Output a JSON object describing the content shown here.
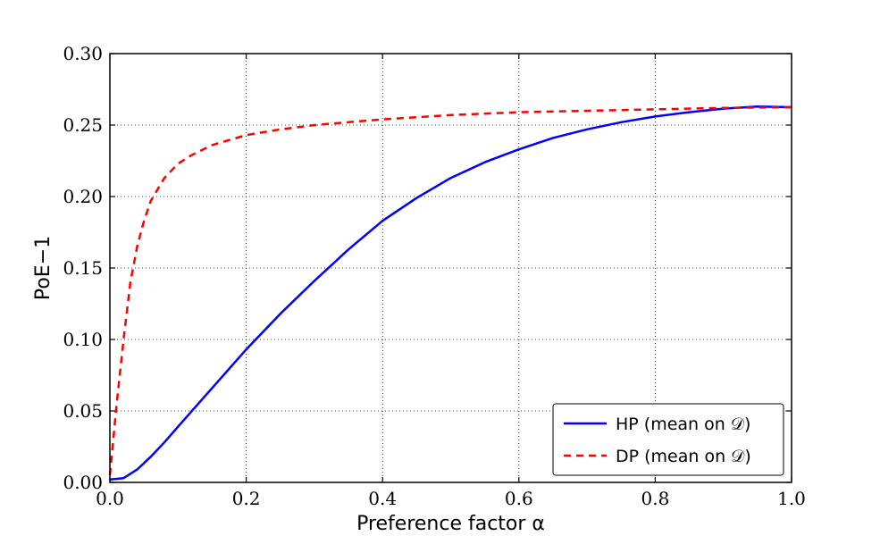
{
  "chart_data": {
    "type": "line",
    "xlabel": "Preference factor α",
    "ylabel": "PoE−1",
    "xlim": [
      0.0,
      1.0
    ],
    "ylim": [
      0.0,
      0.3
    ],
    "x_ticks": [
      0.0,
      0.2,
      0.4,
      0.6,
      0.8,
      1.0
    ],
    "x_tick_labels": [
      "0.0",
      "0.2",
      "0.4",
      "0.6",
      "0.8",
      "1.0"
    ],
    "y_ticks": [
      0.0,
      0.05,
      0.1,
      0.15,
      0.2,
      0.25,
      0.3
    ],
    "y_tick_labels": [
      "0.00",
      "0.05",
      "0.10",
      "0.15",
      "0.20",
      "0.25",
      "0.30"
    ],
    "grid": true,
    "legend_position": "bottom-right",
    "series": [
      {
        "name": "HP (mean on 𝒟)",
        "color": "#0000ff",
        "style": "solid",
        "x": [
          0.0,
          0.02,
          0.04,
          0.06,
          0.08,
          0.1,
          0.15,
          0.2,
          0.25,
          0.3,
          0.35,
          0.4,
          0.45,
          0.5,
          0.55,
          0.6,
          0.65,
          0.7,
          0.75,
          0.8,
          0.85,
          0.9,
          0.95,
          1.0
        ],
        "y": [
          0.002,
          0.003,
          0.009,
          0.018,
          0.028,
          0.039,
          0.066,
          0.093,
          0.118,
          0.141,
          0.163,
          0.183,
          0.199,
          0.213,
          0.224,
          0.233,
          0.241,
          0.247,
          0.252,
          0.256,
          0.259,
          0.2615,
          0.263,
          0.2625
        ]
      },
      {
        "name": "DP (mean on 𝒟)",
        "color": "#ff0000",
        "style": "dashed",
        "x": [
          0.0,
          0.01,
          0.02,
          0.03,
          0.04,
          0.05,
          0.06,
          0.08,
          0.1,
          0.12,
          0.15,
          0.2,
          0.25,
          0.3,
          0.4,
          0.5,
          0.6,
          0.7,
          0.8,
          0.9,
          1.0
        ],
        "y": [
          0.005,
          0.055,
          0.1,
          0.14,
          0.165,
          0.183,
          0.197,
          0.213,
          0.223,
          0.229,
          0.236,
          0.243,
          0.247,
          0.25,
          0.254,
          0.257,
          0.259,
          0.26,
          0.261,
          0.262,
          0.2625
        ]
      }
    ]
  }
}
